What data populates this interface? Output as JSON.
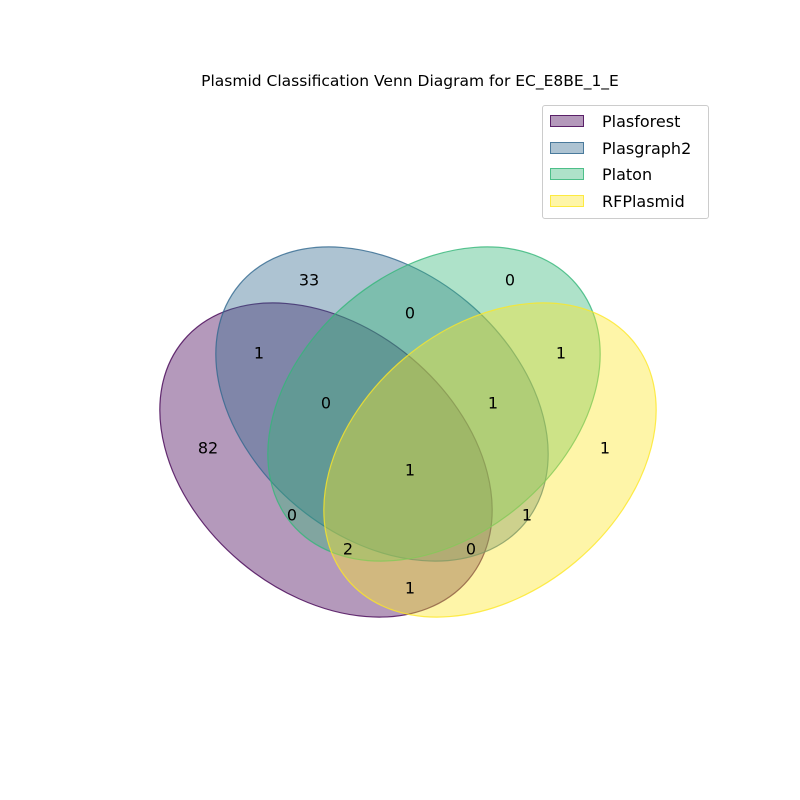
{
  "title": "Plasmid Classification Venn Diagram for EC_E8BE_1_E",
  "sets": [
    {
      "name": "Plasforest",
      "fill": "#440154",
      "edge": "#440154"
    },
    {
      "name": "Plasgraph2",
      "fill": "#31688e",
      "edge": "#31688e"
    },
    {
      "name": "Platon",
      "fill": "#35b779",
      "edge": "#35b779"
    },
    {
      "name": "RFPlasmid",
      "fill": "#fde725",
      "edge": "#fde725"
    }
  ],
  "regions": [
    {
      "sets": [
        "Plasforest"
      ],
      "value": "82"
    },
    {
      "sets": [
        "Plasgraph2"
      ],
      "value": "33"
    },
    {
      "sets": [
        "Platon"
      ],
      "value": "0"
    },
    {
      "sets": [
        "RFPlasmid"
      ],
      "value": "1"
    },
    {
      "sets": [
        "Plasforest",
        "Plasgraph2"
      ],
      "value": "1"
    },
    {
      "sets": [
        "Plasgraph2",
        "Platon"
      ],
      "value": "0"
    },
    {
      "sets": [
        "Platon",
        "RFPlasmid"
      ],
      "value": "1"
    },
    {
      "sets": [
        "Plasforest",
        "Plasgraph2",
        "Platon"
      ],
      "value": "0"
    },
    {
      "sets": [
        "Plasgraph2",
        "Platon",
        "RFPlasmid"
      ],
      "value": "1"
    },
    {
      "sets": [
        "Plasforest",
        "Plasgraph2",
        "Platon",
        "RFPlasmid"
      ],
      "value": "1"
    },
    {
      "sets": [
        "Plasforest",
        "Platon"
      ],
      "value": "0"
    },
    {
      "sets": [
        "Plasgraph2",
        "RFPlasmid"
      ],
      "value": "1"
    },
    {
      "sets": [
        "Plasforest",
        "Platon",
        "RFPlasmid"
      ],
      "value": "2"
    },
    {
      "sets": [
        "Plasforest",
        "Plasgraph2",
        "RFPlasmid"
      ],
      "value": "0"
    },
    {
      "sets": [
        "Plasforest",
        "RFPlasmid"
      ],
      "value": "1"
    }
  ]
}
